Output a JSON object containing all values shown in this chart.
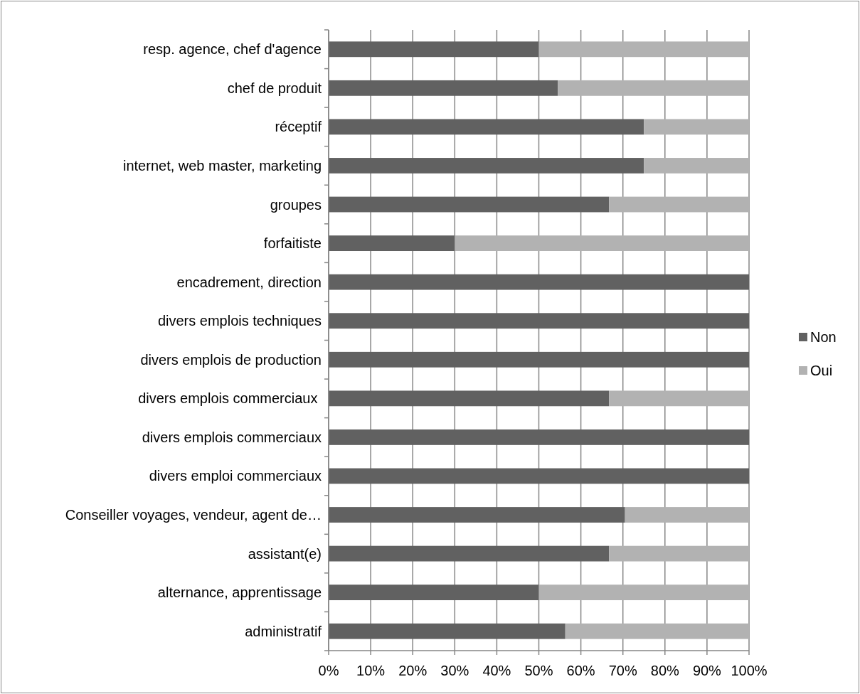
{
  "chart_data": {
    "type": "bar",
    "orientation": "horizontal",
    "stacked": true,
    "grid": "x",
    "legend": "right",
    "categories": [
      "resp. agence, chef d'agence",
      "chef de produit",
      "réceptif",
      "internet, web master, marketing",
      "groupes",
      "forfaitiste",
      "encadrement, direction",
      "divers emplois techniques",
      "divers emplois de production",
      "divers emplois commerciaux ",
      "divers emplois commerciaux",
      "divers emploi commerciaux",
      "Conseiller voyages, vendeur, agent de…",
      "assistant(e)",
      "alternance, apprentissage",
      "administratif"
    ],
    "series": [
      {
        "name": "Non",
        "color": "#616161",
        "values": [
          50,
          54.5,
          75,
          75,
          66.7,
          30,
          100,
          100,
          100,
          66.7,
          100,
          100,
          70.5,
          66.7,
          50,
          56.3
        ]
      },
      {
        "name": "Oui",
        "color": "#b2b2b2",
        "values": [
          50,
          45.5,
          25,
          25,
          33.3,
          70,
          0,
          0,
          0,
          33.3,
          0,
          0,
          29.5,
          33.3,
          50,
          43.7
        ]
      }
    ],
    "xlim": [
      0,
      100
    ],
    "xticks": [
      {
        "value": 0,
        "label": "0%"
      },
      {
        "value": 10,
        "label": "10%"
      },
      {
        "value": 20,
        "label": "20%"
      },
      {
        "value": 30,
        "label": "30%"
      },
      {
        "value": 40,
        "label": "40%"
      },
      {
        "value": 50,
        "label": "50%"
      },
      {
        "value": 60,
        "label": "60%"
      },
      {
        "value": 70,
        "label": "70%"
      },
      {
        "value": 80,
        "label": "80%"
      },
      {
        "value": 90,
        "label": "90%"
      },
      {
        "value": 100,
        "label": "100%"
      }
    ]
  }
}
